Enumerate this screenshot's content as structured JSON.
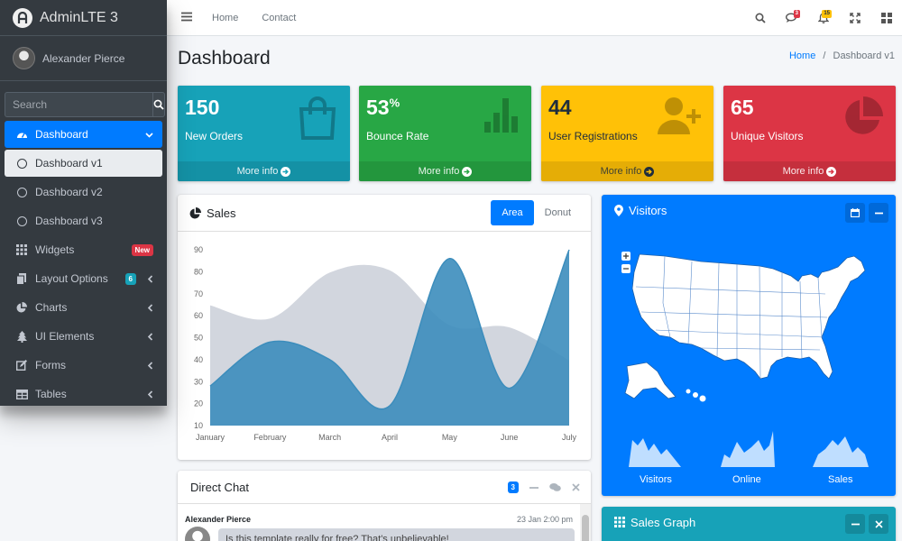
{
  "brand": {
    "text": "AdminLTE 3"
  },
  "user": {
    "name": "Alexander Pierce"
  },
  "sidebar": {
    "search_placeholder": "Search",
    "items": [
      {
        "label": "Dashboard"
      },
      {
        "label": "Dashboard v1"
      },
      {
        "label": "Dashboard v2"
      },
      {
        "label": "Dashboard v3"
      },
      {
        "label": "Widgets",
        "badge": "New"
      },
      {
        "label": "Layout Options",
        "badge": "6"
      },
      {
        "label": "Charts"
      },
      {
        "label": "UI Elements"
      },
      {
        "label": "Forms"
      },
      {
        "label": "Tables"
      }
    ]
  },
  "topbar": {
    "links": [
      "Home",
      "Contact"
    ],
    "messages_count": "3",
    "notifications_count": "15"
  },
  "page": {
    "title": "Dashboard",
    "breadcrumb_home": "Home",
    "breadcrumb_current": "Dashboard v1"
  },
  "stats": [
    {
      "value": "150",
      "suffix": "",
      "label": "New Orders",
      "link": "More info",
      "color": "#17a2b8"
    },
    {
      "value": "53",
      "suffix": "%",
      "label": "Bounce Rate",
      "link": "More info",
      "color": "#28a745"
    },
    {
      "value": "44",
      "suffix": "",
      "label": "User Registrations",
      "link": "More info",
      "color": "#ffc107"
    },
    {
      "value": "65",
      "suffix": "",
      "label": "Unique Visitors",
      "link": "More info",
      "color": "#dc3545"
    }
  ],
  "sales": {
    "title": "Sales",
    "tabs": [
      "Area",
      "Donut"
    ]
  },
  "chart_data": {
    "type": "area",
    "categories": [
      "January",
      "February",
      "March",
      "April",
      "May",
      "June",
      "July"
    ],
    "ylim": [
      10,
      90
    ],
    "yticks": [
      10,
      20,
      30,
      40,
      50,
      60,
      70,
      80,
      90
    ],
    "series": [
      {
        "values": [
          65,
          59,
          80,
          81,
          56,
          55,
          40
        ],
        "color": "#d2d6de"
      },
      {
        "values": [
          28,
          48,
          40,
          19,
          86,
          27,
          90
        ],
        "color": "#3c8dbc"
      }
    ]
  },
  "visitors": {
    "title": "Visitors",
    "sparklines": [
      "Visitors",
      "Online",
      "Sales"
    ]
  },
  "chat": {
    "title": "Direct Chat",
    "count": "3",
    "author": "Alexander Pierce",
    "time": "23 Jan 2:00 pm",
    "message": "Is this template really for free? That's unbelievable!"
  },
  "sales_graph": {
    "title": "Sales Graph"
  }
}
